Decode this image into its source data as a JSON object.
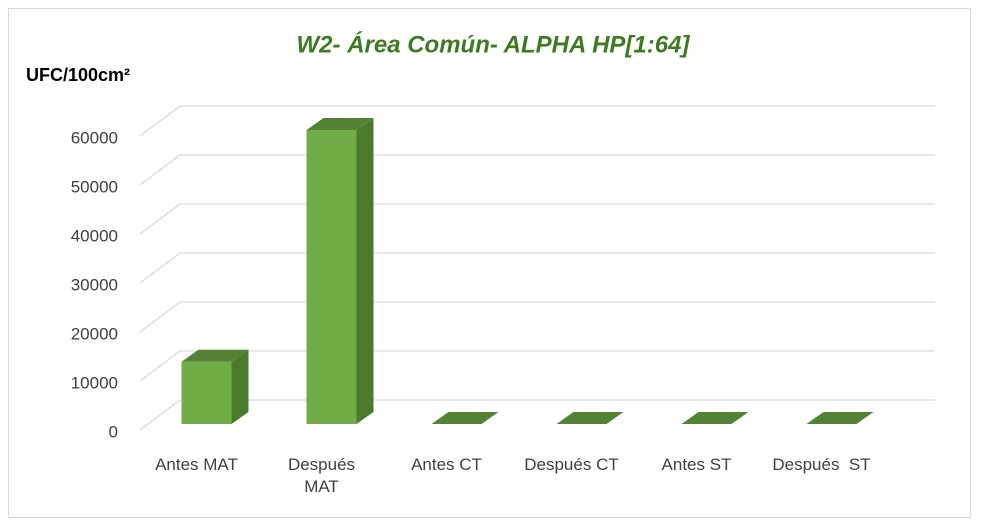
{
  "chart_data": {
    "type": "bar3d",
    "title": "W2- Área Común- ALPHA HP[1:64]",
    "y_axis_label": "UFC/100cm²",
    "categories": [
      "Antes MAT",
      "Después MAT",
      "Antes CT",
      "Después CT",
      "Antes ST",
      "Después  ST"
    ],
    "values": [
      12700,
      60000,
      0,
      0,
      0,
      0
    ],
    "color": "#70ad47",
    "ylim": [
      0,
      60000
    ],
    "yticks": [
      0,
      10000,
      20000,
      30000,
      40000,
      50000,
      60000
    ],
    "grid": true
  }
}
